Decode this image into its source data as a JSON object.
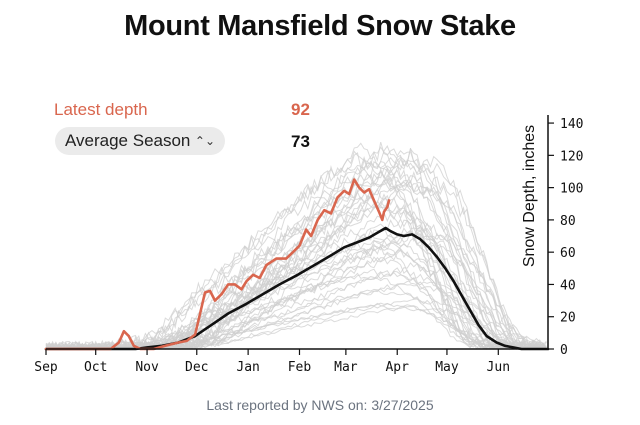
{
  "title": "Mount Mansfield Snow Stake",
  "latest": {
    "label": "Latest depth",
    "value": "92"
  },
  "selector": {
    "label": "Average Season",
    "value": "73"
  },
  "footer": "Last reported by NWS on: 3/27/2025",
  "colors": {
    "current": "#d9664e",
    "average": "#111111",
    "history": "#cfcfcf"
  },
  "chart_data": {
    "type": "line",
    "ylabel": "Snow Depth, inches",
    "x_ticks": [
      "Sep",
      "Oct",
      "Nov",
      "Dec",
      "Jan",
      "Feb",
      "Mar",
      "Apr",
      "May",
      "Jun"
    ],
    "y_ticks": [
      0,
      20,
      40,
      60,
      80,
      100,
      120,
      140
    ],
    "ylim": [
      0,
      145
    ],
    "xlim": [
      "09-01",
      "07-01"
    ],
    "y_axis_position": "right",
    "series": [
      {
        "points": [
          [
            "09-01",
            0
          ],
          [
            "10-25",
            0
          ],
          [
            "11-01",
            1
          ],
          [
            "11-10",
            2
          ],
          [
            "11-20",
            4
          ],
          [
            "11-30",
            8
          ],
          [
            "12-10",
            15
          ],
          [
            "12-20",
            22
          ],
          [
            "12-31",
            28
          ],
          [
            "01-10",
            34
          ],
          [
            "01-20",
            40
          ],
          [
            "01-31",
            46
          ],
          [
            "02-10",
            52
          ],
          [
            "02-20",
            58
          ],
          [
            "02-28",
            63
          ],
          [
            "03-05",
            65
          ],
          [
            "03-10",
            67
          ],
          [
            "03-15",
            69
          ],
          [
            "03-20",
            72
          ],
          [
            "03-25",
            75
          ],
          [
            "03-28",
            73
          ],
          [
            "04-01",
            71
          ],
          [
            "04-05",
            70
          ],
          [
            "04-10",
            71
          ],
          [
            "04-15",
            68
          ],
          [
            "04-20",
            63
          ],
          [
            "04-25",
            57
          ],
          [
            "04-30",
            50
          ],
          [
            "05-05",
            42
          ],
          [
            "05-10",
            33
          ],
          [
            "05-15",
            24
          ],
          [
            "05-20",
            15
          ],
          [
            "05-25",
            8
          ],
          [
            "05-31",
            4
          ],
          [
            "06-05",
            2
          ],
          [
            "06-10",
            1
          ],
          [
            "06-15",
            0
          ],
          [
            "07-01",
            0
          ]
        ]
      },
      {
        "points": [
          [
            "09-01",
            0
          ],
          [
            "10-10",
            0
          ],
          [
            "10-15",
            4
          ],
          [
            "10-18",
            11
          ],
          [
            "10-21",
            8
          ],
          [
            "10-24",
            2
          ],
          [
            "10-28",
            0
          ],
          [
            "11-05",
            0
          ],
          [
            "11-12",
            2
          ],
          [
            "11-20",
            4
          ],
          [
            "11-25",
            5
          ],
          [
            "11-30",
            9
          ],
          [
            "12-03",
            22
          ],
          [
            "12-06",
            35
          ],
          [
            "12-09",
            36
          ],
          [
            "12-12",
            30
          ],
          [
            "12-16",
            34
          ],
          [
            "12-20",
            40
          ],
          [
            "12-24",
            40
          ],
          [
            "12-28",
            37
          ],
          [
            "12-31",
            42
          ],
          [
            "01-04",
            46
          ],
          [
            "01-08",
            44
          ],
          [
            "01-12",
            52
          ],
          [
            "01-18",
            56
          ],
          [
            "01-24",
            56
          ],
          [
            "01-28",
            60
          ],
          [
            "02-01",
            64
          ],
          [
            "02-05",
            74
          ],
          [
            "02-08",
            70
          ],
          [
            "02-12",
            80
          ],
          [
            "02-16",
            86
          ],
          [
            "02-20",
            84
          ],
          [
            "02-24",
            94
          ],
          [
            "02-28",
            98
          ],
          [
            "03-03",
            96
          ],
          [
            "03-06",
            105
          ],
          [
            "03-09",
            100
          ],
          [
            "03-12",
            97
          ],
          [
            "03-15",
            99
          ],
          [
            "03-18",
            92
          ],
          [
            "03-21",
            85
          ],
          [
            "03-23",
            80
          ],
          [
            "03-24",
            85
          ],
          [
            "03-26",
            88
          ],
          [
            "03-27",
            92
          ]
        ]
      }
    ]
  }
}
